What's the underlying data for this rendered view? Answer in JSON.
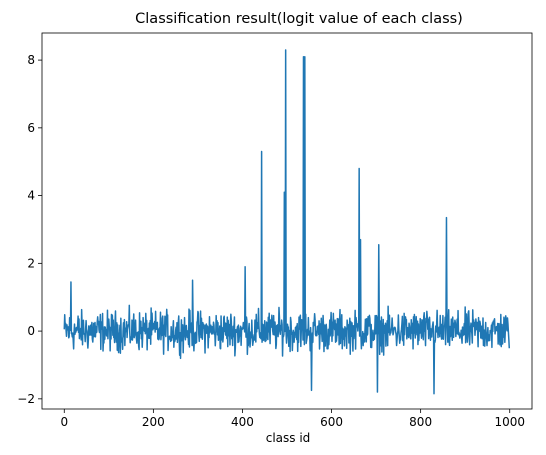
{
  "chart_data": {
    "type": "line",
    "title": "Classification result(logit value of each class)",
    "xlabel": "class id",
    "ylabel": "",
    "xlim": [
      -50,
      1050
    ],
    "ylim": [
      -2.3,
      8.8
    ],
    "xticks": [
      0,
      200,
      400,
      600,
      800,
      1000
    ],
    "yticks": [
      -2,
      0,
      2,
      4,
      6,
      8
    ],
    "grid": false,
    "legend": "none",
    "line_color": "#1f77b4",
    "n_points": 1000,
    "baseline_range": [
      -1.85,
      1.5
    ],
    "peaks": [
      {
        "x": 406,
        "y": 1.9
      },
      {
        "x": 443,
        "y": 5.3
      },
      {
        "x": 494,
        "y": 4.1
      },
      {
        "x": 497,
        "y": 8.3
      },
      {
        "x": 537,
        "y": 8.1
      },
      {
        "x": 540,
        "y": 8.1
      },
      {
        "x": 662,
        "y": 4.8
      },
      {
        "x": 665,
        "y": 2.7
      },
      {
        "x": 706,
        "y": 2.55
      },
      {
        "x": 858,
        "y": 3.35
      },
      {
        "x": 288,
        "y": 1.5
      },
      {
        "x": 15,
        "y": 1.45
      },
      {
        "x": 830,
        "y": -1.85
      },
      {
        "x": 703,
        "y": -1.8
      },
      {
        "x": 555,
        "y": -1.75
      }
    ]
  }
}
